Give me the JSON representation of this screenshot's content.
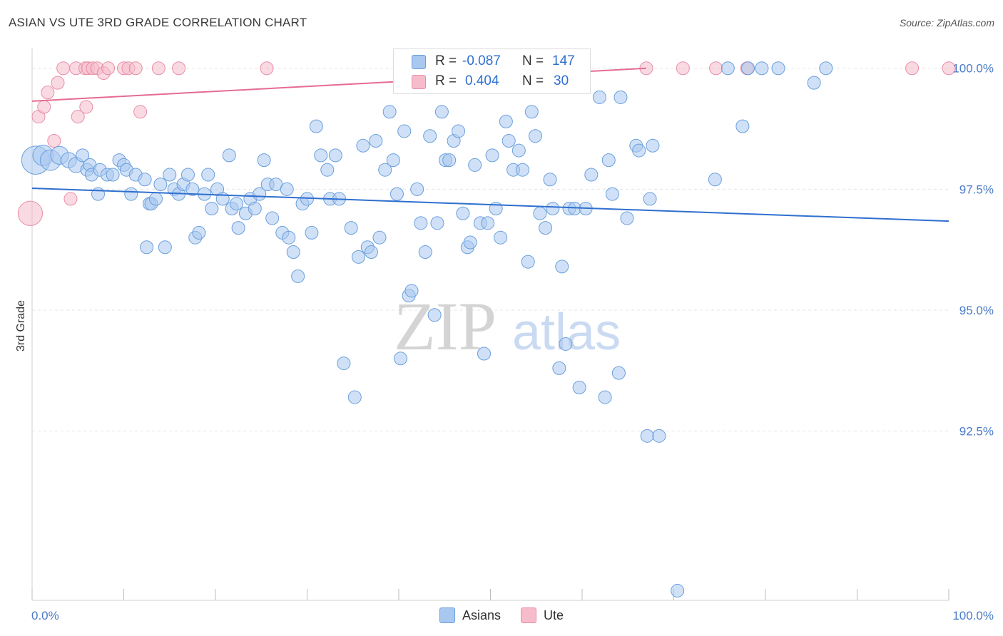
{
  "title": "ASIAN VS UTE 3RD GRADE CORRELATION CHART",
  "source": "Source: ZipAtlas.com",
  "watermark": {
    "zip": "ZIP",
    "atlas": "atlas"
  },
  "colors": {
    "asian_fill": "#a9c8f0",
    "asian_stroke": "#6a9fdc",
    "asian_line": "#2f6fcf",
    "ute_fill": "#f6bccb",
    "ute_stroke": "#e98ea8",
    "ute_line": "#e56b92",
    "tick_label": "#4a7bc8",
    "grid": "#e3e3e3"
  },
  "legend_stats": [
    {
      "r_label": "R =",
      "r_value": "-0.087",
      "n_label": "N =",
      "n_value": "147"
    },
    {
      "r_label": "R =",
      "r_value": "0.404",
      "n_label": "N =",
      "n_value": "30"
    }
  ],
  "legend_bottom": [
    "Asians",
    "Ute"
  ],
  "chart_data": {
    "type": "scatter",
    "title": "ASIAN VS UTE 3RD GRADE CORRELATION CHART",
    "xlabel": "",
    "ylabel": "3rd Grade",
    "xlim": [
      0,
      100
    ],
    "ylim": [
      89.0,
      100.35
    ],
    "x_tick_labels": [
      "0.0%",
      "100.0%"
    ],
    "y_ticks": [
      92.5,
      95.0,
      97.5,
      100.0
    ],
    "y_tick_labels": [
      "92.5%",
      "95.0%",
      "97.5%",
      "100.0%"
    ],
    "series": [
      {
        "name": "Asians",
        "trend": {
          "x": [
            0,
            100
          ],
          "y": [
            97.52,
            96.84
          ]
        },
        "points": [
          {
            "x": 0.4,
            "y": 98.1,
            "s": 2.2
          },
          {
            "x": 1.2,
            "y": 98.2,
            "s": 1.6
          },
          {
            "x": 2.0,
            "y": 98.1,
            "s": 1.6
          },
          {
            "x": 3.0,
            "y": 98.2,
            "s": 1.4
          },
          {
            "x": 4.0,
            "y": 98.1,
            "s": 1.2
          },
          {
            "x": 4.8,
            "y": 98.0,
            "s": 1.2
          },
          {
            "x": 5.5,
            "y": 98.2,
            "s": 1.0
          },
          {
            "x": 6.0,
            "y": 97.9,
            "s": 1.0
          },
          {
            "x": 6.3,
            "y": 98.0,
            "s": 1.0
          },
          {
            "x": 6.5,
            "y": 97.8,
            "s": 1.0
          },
          {
            "x": 7.2,
            "y": 97.4,
            "s": 1.0
          },
          {
            "x": 7.4,
            "y": 97.9,
            "s": 1.0
          },
          {
            "x": 8.2,
            "y": 97.8,
            "s": 1.0
          },
          {
            "x": 8.8,
            "y": 97.8,
            "s": 1.0
          },
          {
            "x": 9.5,
            "y": 98.1,
            "s": 1.0
          },
          {
            "x": 10.0,
            "y": 98.0,
            "s": 1.0
          },
          {
            "x": 10.3,
            "y": 97.9,
            "s": 1.0
          },
          {
            "x": 10.8,
            "y": 97.4,
            "s": 1.0
          },
          {
            "x": 11.3,
            "y": 97.8,
            "s": 1.0
          },
          {
            "x": 12.3,
            "y": 97.7,
            "s": 1.0
          },
          {
            "x": 12.5,
            "y": 96.3,
            "s": 1.0
          },
          {
            "x": 12.8,
            "y": 97.2,
            "s": 1.0
          },
          {
            "x": 13.0,
            "y": 97.2,
            "s": 1.0
          },
          {
            "x": 13.5,
            "y": 97.3,
            "s": 1.0
          },
          {
            "x": 14.0,
            "y": 97.6,
            "s": 1.0
          },
          {
            "x": 14.5,
            "y": 96.3,
            "s": 1.0
          },
          {
            "x": 15.0,
            "y": 97.8,
            "s": 1.0
          },
          {
            "x": 15.5,
            "y": 97.5,
            "s": 1.0
          },
          {
            "x": 16.0,
            "y": 97.4,
            "s": 1.0
          },
          {
            "x": 16.5,
            "y": 97.6,
            "s": 1.0
          },
          {
            "x": 17.0,
            "y": 97.8,
            "s": 1.0
          },
          {
            "x": 17.5,
            "y": 97.5,
            "s": 1.0
          },
          {
            "x": 17.8,
            "y": 96.5,
            "s": 1.0
          },
          {
            "x": 18.2,
            "y": 96.6,
            "s": 1.0
          },
          {
            "x": 18.8,
            "y": 97.4,
            "s": 1.0
          },
          {
            "x": 19.2,
            "y": 97.8,
            "s": 1.0
          },
          {
            "x": 19.6,
            "y": 97.1,
            "s": 1.0
          },
          {
            "x": 20.2,
            "y": 97.5,
            "s": 1.0
          },
          {
            "x": 20.8,
            "y": 97.3,
            "s": 1.0
          },
          {
            "x": 21.5,
            "y": 98.2,
            "s": 1.0
          },
          {
            "x": 21.8,
            "y": 97.1,
            "s": 1.0
          },
          {
            "x": 22.3,
            "y": 97.2,
            "s": 1.0
          },
          {
            "x": 22.5,
            "y": 96.7,
            "s": 1.0
          },
          {
            "x": 23.3,
            "y": 97.0,
            "s": 1.0
          },
          {
            "x": 23.8,
            "y": 97.3,
            "s": 1.0
          },
          {
            "x": 24.3,
            "y": 97.1,
            "s": 1.0
          },
          {
            "x": 24.8,
            "y": 97.4,
            "s": 1.0
          },
          {
            "x": 25.3,
            "y": 98.1,
            "s": 1.0
          },
          {
            "x": 25.7,
            "y": 97.6,
            "s": 1.0
          },
          {
            "x": 26.2,
            "y": 96.9,
            "s": 1.0
          },
          {
            "x": 26.6,
            "y": 97.6,
            "s": 1.0
          },
          {
            "x": 27.3,
            "y": 96.6,
            "s": 1.0
          },
          {
            "x": 27.8,
            "y": 97.5,
            "s": 1.0
          },
          {
            "x": 28.0,
            "y": 96.5,
            "s": 1.0
          },
          {
            "x": 28.5,
            "y": 96.2,
            "s": 1.0
          },
          {
            "x": 29.0,
            "y": 95.7,
            "s": 1.0
          },
          {
            "x": 29.5,
            "y": 97.2,
            "s": 1.0
          },
          {
            "x": 30.0,
            "y": 97.3,
            "s": 1.0
          },
          {
            "x": 30.5,
            "y": 96.6,
            "s": 1.0
          },
          {
            "x": 31.0,
            "y": 98.8,
            "s": 1.0
          },
          {
            "x": 31.5,
            "y": 98.2,
            "s": 1.0
          },
          {
            "x": 32.2,
            "y": 97.9,
            "s": 1.0
          },
          {
            "x": 32.5,
            "y": 97.3,
            "s": 1.0
          },
          {
            "x": 33.1,
            "y": 98.2,
            "s": 1.0
          },
          {
            "x": 33.5,
            "y": 97.3,
            "s": 1.0
          },
          {
            "x": 34.0,
            "y": 93.9,
            "s": 1.0
          },
          {
            "x": 34.8,
            "y": 96.7,
            "s": 1.0
          },
          {
            "x": 35.2,
            "y": 93.2,
            "s": 1.0
          },
          {
            "x": 35.6,
            "y": 96.1,
            "s": 1.0
          },
          {
            "x": 36.1,
            "y": 98.4,
            "s": 1.0
          },
          {
            "x": 36.6,
            "y": 96.3,
            "s": 1.0
          },
          {
            "x": 37.0,
            "y": 96.2,
            "s": 1.0
          },
          {
            "x": 37.5,
            "y": 98.5,
            "s": 1.0
          },
          {
            "x": 37.9,
            "y": 96.5,
            "s": 1.0
          },
          {
            "x": 38.5,
            "y": 97.9,
            "s": 1.0
          },
          {
            "x": 39.0,
            "y": 99.1,
            "s": 1.0
          },
          {
            "x": 39.4,
            "y": 98.1,
            "s": 1.0
          },
          {
            "x": 39.8,
            "y": 97.4,
            "s": 1.0
          },
          {
            "x": 40.2,
            "y": 94.0,
            "s": 1.0
          },
          {
            "x": 40.6,
            "y": 98.7,
            "s": 1.0
          },
          {
            "x": 41.1,
            "y": 95.3,
            "s": 1.0
          },
          {
            "x": 41.4,
            "y": 95.4,
            "s": 1.0
          },
          {
            "x": 42.0,
            "y": 97.5,
            "s": 1.0
          },
          {
            "x": 42.4,
            "y": 96.8,
            "s": 1.0
          },
          {
            "x": 42.9,
            "y": 96.2,
            "s": 1.0
          },
          {
            "x": 43.4,
            "y": 98.6,
            "s": 1.0
          },
          {
            "x": 43.9,
            "y": 94.9,
            "s": 1.0
          },
          {
            "x": 44.2,
            "y": 96.8,
            "s": 1.0
          },
          {
            "x": 44.7,
            "y": 99.1,
            "s": 1.0
          },
          {
            "x": 45.1,
            "y": 98.1,
            "s": 1.0
          },
          {
            "x": 45.5,
            "y": 98.1,
            "s": 1.0
          },
          {
            "x": 46.0,
            "y": 98.5,
            "s": 1.0
          },
          {
            "x": 46.5,
            "y": 98.7,
            "s": 1.0
          },
          {
            "x": 47.0,
            "y": 97.0,
            "s": 1.0
          },
          {
            "x": 47.5,
            "y": 96.3,
            "s": 1.0
          },
          {
            "x": 47.8,
            "y": 96.4,
            "s": 1.0
          },
          {
            "x": 48.3,
            "y": 98.0,
            "s": 1.0
          },
          {
            "x": 48.9,
            "y": 96.8,
            "s": 1.0
          },
          {
            "x": 49.3,
            "y": 94.1,
            "s": 1.0
          },
          {
            "x": 49.7,
            "y": 96.8,
            "s": 1.0
          },
          {
            "x": 50.2,
            "y": 98.2,
            "s": 1.0
          },
          {
            "x": 50.6,
            "y": 97.1,
            "s": 1.0
          },
          {
            "x": 51.1,
            "y": 96.5,
            "s": 1.0
          },
          {
            "x": 51.7,
            "y": 98.9,
            "s": 1.0
          },
          {
            "x": 52.0,
            "y": 98.5,
            "s": 1.0
          },
          {
            "x": 52.5,
            "y": 97.9,
            "s": 1.0
          },
          {
            "x": 53.1,
            "y": 98.3,
            "s": 1.0
          },
          {
            "x": 53.5,
            "y": 97.9,
            "s": 1.0
          },
          {
            "x": 54.1,
            "y": 96.0,
            "s": 1.0
          },
          {
            "x": 54.5,
            "y": 99.1,
            "s": 1.0
          },
          {
            "x": 54.9,
            "y": 98.6,
            "s": 1.0
          },
          {
            "x": 55.4,
            "y": 97.0,
            "s": 1.0
          },
          {
            "x": 56.0,
            "y": 96.7,
            "s": 1.0
          },
          {
            "x": 56.5,
            "y": 97.7,
            "s": 1.0
          },
          {
            "x": 56.8,
            "y": 97.1,
            "s": 1.0
          },
          {
            "x": 57.5,
            "y": 93.8,
            "s": 1.0
          },
          {
            "x": 57.8,
            "y": 95.9,
            "s": 1.0
          },
          {
            "x": 58.2,
            "y": 94.3,
            "s": 1.0
          },
          {
            "x": 58.6,
            "y": 97.1,
            "s": 1.0
          },
          {
            "x": 59.2,
            "y": 97.1,
            "s": 1.0
          },
          {
            "x": 59.7,
            "y": 93.4,
            "s": 1.0
          },
          {
            "x": 60.4,
            "y": 97.1,
            "s": 1.0
          },
          {
            "x": 61.0,
            "y": 97.8,
            "s": 1.0
          },
          {
            "x": 61.9,
            "y": 99.4,
            "s": 1.0
          },
          {
            "x": 62.5,
            "y": 93.2,
            "s": 1.0
          },
          {
            "x": 62.9,
            "y": 98.1,
            "s": 1.0
          },
          {
            "x": 63.3,
            "y": 97.4,
            "s": 1.0
          },
          {
            "x": 64.0,
            "y": 93.7,
            "s": 1.0
          },
          {
            "x": 64.2,
            "y": 99.4,
            "s": 1.0
          },
          {
            "x": 64.9,
            "y": 96.9,
            "s": 1.0
          },
          {
            "x": 65.9,
            "y": 98.4,
            "s": 1.0
          },
          {
            "x": 66.2,
            "y": 98.3,
            "s": 1.0
          },
          {
            "x": 67.1,
            "y": 92.4,
            "s": 1.0
          },
          {
            "x": 67.4,
            "y": 97.3,
            "s": 1.0
          },
          {
            "x": 67.7,
            "y": 98.4,
            "s": 1.0
          },
          {
            "x": 68.4,
            "y": 92.4,
            "s": 1.0
          },
          {
            "x": 70.4,
            "y": 89.2,
            "s": 1.0
          },
          {
            "x": 74.5,
            "y": 97.7,
            "s": 1.0
          },
          {
            "x": 75.9,
            "y": 100.0,
            "s": 1.0
          },
          {
            "x": 77.5,
            "y": 98.8,
            "s": 1.0
          },
          {
            "x": 78.1,
            "y": 100.0,
            "s": 1.0
          },
          {
            "x": 79.6,
            "y": 100.0,
            "s": 1.0
          },
          {
            "x": 81.4,
            "y": 100.0,
            "s": 1.0
          },
          {
            "x": 85.3,
            "y": 99.7,
            "s": 1.0
          },
          {
            "x": 86.6,
            "y": 100.0,
            "s": 1.0
          }
        ]
      },
      {
        "name": "Ute",
        "trend": {
          "x": [
            0,
            67
          ],
          "y": [
            99.32,
            100.0
          ]
        },
        "points": [
          {
            "x": -0.2,
            "y": 97.0,
            "s": 1.9
          },
          {
            "x": 0.7,
            "y": 99.0,
            "s": 1.0
          },
          {
            "x": 1.3,
            "y": 99.2,
            "s": 1.0
          },
          {
            "x": 1.7,
            "y": 99.5,
            "s": 1.0
          },
          {
            "x": 2.4,
            "y": 98.5,
            "s": 1.0
          },
          {
            "x": 2.8,
            "y": 99.7,
            "s": 1.0
          },
          {
            "x": 3.4,
            "y": 100.0,
            "s": 1.0
          },
          {
            "x": 4.2,
            "y": 97.3,
            "s": 1.0
          },
          {
            "x": 4.8,
            "y": 100.0,
            "s": 1.0
          },
          {
            "x": 5.0,
            "y": 99.0,
            "s": 1.0
          },
          {
            "x": 5.8,
            "y": 100.0,
            "s": 1.0
          },
          {
            "x": 5.9,
            "y": 99.2,
            "s": 1.0
          },
          {
            "x": 6.1,
            "y": 100.0,
            "s": 1.0
          },
          {
            "x": 6.6,
            "y": 100.0,
            "s": 1.0
          },
          {
            "x": 7.1,
            "y": 100.0,
            "s": 1.0
          },
          {
            "x": 7.8,
            "y": 99.9,
            "s": 1.0
          },
          {
            "x": 8.3,
            "y": 100.0,
            "s": 1.0
          },
          {
            "x": 10.0,
            "y": 100.0,
            "s": 1.0
          },
          {
            "x": 10.5,
            "y": 100.0,
            "s": 1.0
          },
          {
            "x": 11.3,
            "y": 100.0,
            "s": 1.0
          },
          {
            "x": 11.8,
            "y": 99.1,
            "s": 1.0
          },
          {
            "x": 13.8,
            "y": 100.0,
            "s": 1.0
          },
          {
            "x": 16.0,
            "y": 100.0,
            "s": 1.0
          },
          {
            "x": 25.6,
            "y": 100.0,
            "s": 1.0
          },
          {
            "x": 67.0,
            "y": 100.0,
            "s": 1.0
          },
          {
            "x": 71.0,
            "y": 100.0,
            "s": 1.0
          },
          {
            "x": 74.6,
            "y": 100.0,
            "s": 1.0
          },
          {
            "x": 78.0,
            "y": 100.0,
            "s": 1.0
          },
          {
            "x": 96.0,
            "y": 100.0,
            "s": 1.0
          },
          {
            "x": 100.0,
            "y": 100.0,
            "s": 1.0
          }
        ]
      }
    ]
  }
}
